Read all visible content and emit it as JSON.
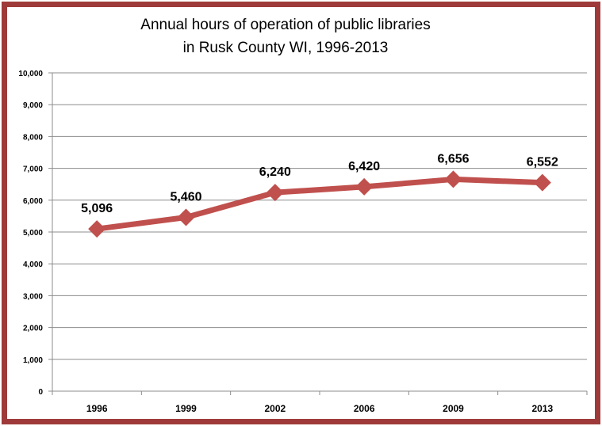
{
  "chart_data": {
    "type": "line",
    "title_lines": [
      "Annual hours of operation of public libraries",
      "in Rusk County WI, 1996-2013"
    ],
    "xlabel": "",
    "ylabel": "",
    "categories": [
      "1996",
      "1999",
      "2002",
      "2006",
      "2009",
      "2013"
    ],
    "series": [
      {
        "values": [
          5096,
          5460,
          6240,
          6420,
          6656,
          6552
        ]
      }
    ],
    "data_labels": [
      "5,096",
      "5,460",
      "6,240",
      "6,420",
      "6,656",
      "6,552"
    ],
    "ylim": [
      0,
      10000
    ],
    "yticks": [
      0,
      1000,
      2000,
      3000,
      4000,
      5000,
      6000,
      7000,
      8000,
      9000,
      10000
    ],
    "ytick_labels": [
      "0",
      "1,000",
      "2,000",
      "3,000",
      "4,000",
      "5,000",
      "6,000",
      "7,000",
      "8,000",
      "9,000",
      "10,000"
    ],
    "grid": true,
    "legend": "none",
    "colors": {
      "line": "#c0504d",
      "frame": "#9e3b3a",
      "grid": "#8c8c8c"
    }
  }
}
